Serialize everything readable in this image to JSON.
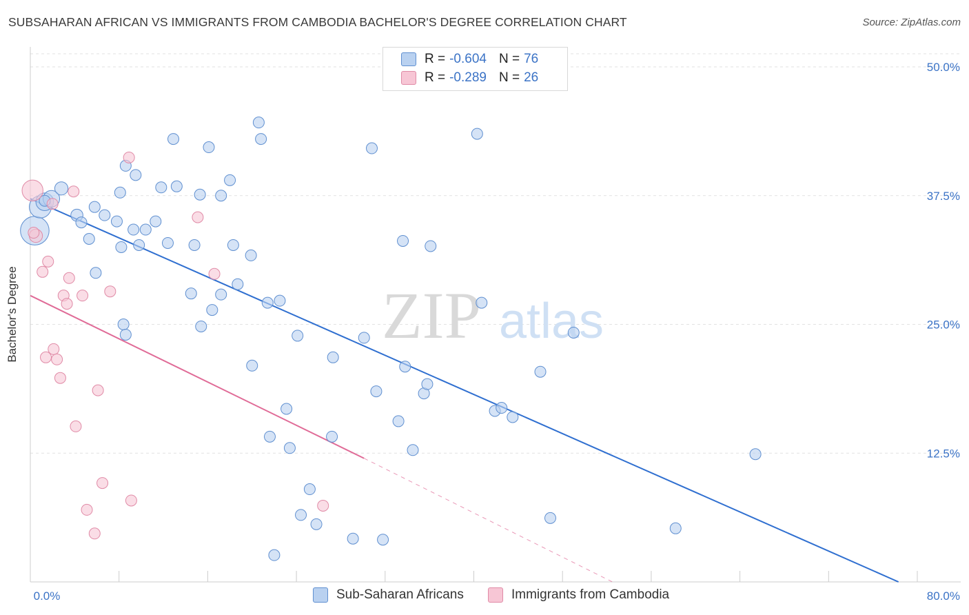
{
  "header": {
    "title": "SUBSAHARAN AFRICAN VS IMMIGRANTS FROM CAMBODIA BACHELOR'S DEGREE CORRELATION CHART",
    "source": "Source: ZipAtlas.com"
  },
  "watermark": {
    "zip": "ZIP",
    "atlas": "atlas"
  },
  "legend": {
    "rows": [
      {
        "r_label": "R =",
        "r_value": "-0.604",
        "n_label": "N =",
        "n_value": "76"
      },
      {
        "r_label": "R =",
        "r_value": "-0.289",
        "n_label": "N =",
        "n_value": "26"
      }
    ]
  },
  "chart_data": {
    "type": "scatter",
    "title": "SUBSAHARAN AFRICAN VS IMMIGRANTS FROM CAMBODIA BACHELOR'S DEGREE CORRELATION CHART",
    "xlabel": "",
    "ylabel": "Bachelor's Degree",
    "xlim": [
      0,
      80
    ],
    "ylim": [
      0,
      50
    ],
    "x_tick_labels": [
      "0.0%",
      "80.0%"
    ],
    "y_ticks": [
      12.5,
      25.0,
      37.5,
      50.0
    ],
    "y_tick_labels": [
      "12.5%",
      "25.0%",
      "37.5%",
      "50.0%"
    ],
    "grid": true,
    "legend_position": "top-center",
    "colors": {
      "blue_fill": "#b9d1f0",
      "blue_stroke": "#5f8fd0",
      "blue_line": "#2f6fd0",
      "pink_fill": "#f7c6d5",
      "pink_stroke": "#e08aa6",
      "pink_line": "#e06b97",
      "axis_text": "#3b73c6",
      "grid": "#e2e2e2"
    },
    "series": [
      {
        "name": "Sub-Saharan Africans",
        "color": "blue",
        "r": -0.604,
        "n": 76,
        "trend": {
          "x0": 0,
          "y0": 37.2,
          "x1": 78.3,
          "y1": 0
        },
        "points": [
          {
            "x": 0.4,
            "y": 34.1,
            "s": 2.6
          },
          {
            "x": 0.9,
            "y": 36.4,
            "s": 2.0
          },
          {
            "x": 1.3,
            "y": 36.9,
            "s": 1.6
          },
          {
            "x": 1.9,
            "y": 37.2,
            "s": 1.5
          },
          {
            "x": 2.8,
            "y": 38.2,
            "s": 1.2
          },
          {
            "x": 4.2,
            "y": 35.6,
            "s": 1.1
          },
          {
            "x": 4.6,
            "y": 34.9,
            "s": 1.0
          },
          {
            "x": 5.8,
            "y": 36.4,
            "s": 1.0
          },
          {
            "x": 5.3,
            "y": 33.3,
            "s": 1.0
          },
          {
            "x": 5.9,
            "y": 30.0,
            "s": 1.0
          },
          {
            "x": 6.7,
            "y": 35.6,
            "s": 1.0
          },
          {
            "x": 7.8,
            "y": 35.0,
            "s": 1.0
          },
          {
            "x": 8.1,
            "y": 37.8,
            "s": 1.0
          },
          {
            "x": 8.6,
            "y": 40.4,
            "s": 1.0
          },
          {
            "x": 8.2,
            "y": 32.5,
            "s": 1.0
          },
          {
            "x": 8.4,
            "y": 25.0,
            "s": 1.0
          },
          {
            "x": 8.6,
            "y": 24.0,
            "s": 1.0
          },
          {
            "x": 9.5,
            "y": 39.5,
            "s": 1.0
          },
          {
            "x": 9.3,
            "y": 34.2,
            "s": 1.0
          },
          {
            "x": 9.8,
            "y": 32.7,
            "s": 1.0
          },
          {
            "x": 10.4,
            "y": 34.2,
            "s": 1.0
          },
          {
            "x": 11.3,
            "y": 35.0,
            "s": 1.0
          },
          {
            "x": 11.8,
            "y": 38.3,
            "s": 1.0
          },
          {
            "x": 12.4,
            "y": 32.9,
            "s": 1.0
          },
          {
            "x": 12.9,
            "y": 43.0,
            "s": 1.0
          },
          {
            "x": 13.2,
            "y": 38.4,
            "s": 1.0
          },
          {
            "x": 14.8,
            "y": 32.7,
            "s": 1.0
          },
          {
            "x": 14.5,
            "y": 28.0,
            "s": 1.0
          },
          {
            "x": 15.3,
            "y": 37.6,
            "s": 1.0
          },
          {
            "x": 15.4,
            "y": 24.8,
            "s": 1.0
          },
          {
            "x": 16.1,
            "y": 42.2,
            "s": 1.0
          },
          {
            "x": 16.4,
            "y": 26.4,
            "s": 1.0
          },
          {
            "x": 17.2,
            "y": 37.5,
            "s": 1.0
          },
          {
            "x": 17.2,
            "y": 27.9,
            "s": 1.0
          },
          {
            "x": 18.0,
            "y": 39.0,
            "s": 1.0
          },
          {
            "x": 18.3,
            "y": 32.7,
            "s": 1.0
          },
          {
            "x": 18.7,
            "y": 28.9,
            "s": 1.0
          },
          {
            "x": 19.9,
            "y": 31.7,
            "s": 1.0
          },
          {
            "x": 20.0,
            "y": 21.0,
            "s": 1.0
          },
          {
            "x": 20.6,
            "y": 44.6,
            "s": 1.0
          },
          {
            "x": 20.8,
            "y": 43.0,
            "s": 1.0
          },
          {
            "x": 21.4,
            "y": 27.1,
            "s": 1.0
          },
          {
            "x": 22.5,
            "y": 27.3,
            "s": 1.0
          },
          {
            "x": 23.1,
            "y": 16.8,
            "s": 1.0
          },
          {
            "x": 21.6,
            "y": 14.1,
            "s": 1.0
          },
          {
            "x": 22.0,
            "y": 2.6,
            "s": 1.0
          },
          {
            "x": 23.4,
            "y": 13.0,
            "s": 1.0
          },
          {
            "x": 24.1,
            "y": 23.9,
            "s": 1.0
          },
          {
            "x": 24.4,
            "y": 6.5,
            "s": 1.0
          },
          {
            "x": 25.2,
            "y": 9.0,
            "s": 1.0
          },
          {
            "x": 25.8,
            "y": 5.6,
            "s": 1.0
          },
          {
            "x": 27.3,
            "y": 21.8,
            "s": 1.0
          },
          {
            "x": 27.2,
            "y": 14.1,
            "s": 1.0
          },
          {
            "x": 29.1,
            "y": 4.2,
            "s": 1.0
          },
          {
            "x": 30.1,
            "y": 23.7,
            "s": 1.0
          },
          {
            "x": 30.8,
            "y": 42.1,
            "s": 1.0
          },
          {
            "x": 31.2,
            "y": 18.5,
            "s": 1.0
          },
          {
            "x": 31.8,
            "y": 4.1,
            "s": 1.0
          },
          {
            "x": 33.2,
            "y": 15.6,
            "s": 1.0
          },
          {
            "x": 33.6,
            "y": 33.1,
            "s": 1.0
          },
          {
            "x": 33.8,
            "y": 20.9,
            "s": 1.0
          },
          {
            "x": 34.5,
            "y": 12.8,
            "s": 1.0
          },
          {
            "x": 35.5,
            "y": 18.3,
            "s": 1.0
          },
          {
            "x": 35.8,
            "y": 19.2,
            "s": 1.0
          },
          {
            "x": 36.1,
            "y": 32.6,
            "s": 1.0
          },
          {
            "x": 40.3,
            "y": 43.5,
            "s": 1.0
          },
          {
            "x": 40.7,
            "y": 27.1,
            "s": 1.0
          },
          {
            "x": 41.9,
            "y": 16.6,
            "s": 1.0
          },
          {
            "x": 42.5,
            "y": 16.9,
            "s": 1.0
          },
          {
            "x": 43.5,
            "y": 16.0,
            "s": 1.0
          },
          {
            "x": 46.0,
            "y": 20.4,
            "s": 1.0
          },
          {
            "x": 46.9,
            "y": 6.2,
            "s": 1.0
          },
          {
            "x": 49.0,
            "y": 24.2,
            "s": 1.0
          },
          {
            "x": 58.2,
            "y": 5.2,
            "s": 1.0
          },
          {
            "x": 65.4,
            "y": 12.4,
            "s": 1.0
          },
          {
            "x": 1.3,
            "y": 37.0,
            "s": 1.0
          }
        ]
      },
      {
        "name": "Immigrants from Cambodia",
        "color": "pink",
        "r": -0.289,
        "n": 26,
        "trend": {
          "x0": 0,
          "y0": 27.8,
          "x1": 30.1,
          "y1": 12.0,
          "dash_x1": 52.5,
          "dash_y1": 0
        },
        "points": [
          {
            "x": 0.2,
            "y": 38.0,
            "s": 1.9
          },
          {
            "x": 0.5,
            "y": 33.6,
            "s": 1.2
          },
          {
            "x": 1.1,
            "y": 30.1,
            "s": 1.0
          },
          {
            "x": 1.4,
            "y": 21.8,
            "s": 1.0
          },
          {
            "x": 1.6,
            "y": 31.1,
            "s": 1.0
          },
          {
            "x": 2.1,
            "y": 22.6,
            "s": 1.0
          },
          {
            "x": 2.4,
            "y": 21.6,
            "s": 1.0
          },
          {
            "x": 2.7,
            "y": 19.8,
            "s": 1.0
          },
          {
            "x": 3.0,
            "y": 27.8,
            "s": 1.0
          },
          {
            "x": 3.3,
            "y": 27.0,
            "s": 1.0
          },
          {
            "x": 3.5,
            "y": 29.5,
            "s": 1.0
          },
          {
            "x": 3.9,
            "y": 37.9,
            "s": 1.0
          },
          {
            "x": 4.1,
            "y": 15.1,
            "s": 1.0
          },
          {
            "x": 4.7,
            "y": 27.8,
            "s": 1.0
          },
          {
            "x": 5.1,
            "y": 7.0,
            "s": 1.0
          },
          {
            "x": 5.8,
            "y": 4.7,
            "s": 1.0
          },
          {
            "x": 6.1,
            "y": 18.6,
            "s": 1.0
          },
          {
            "x": 6.5,
            "y": 9.6,
            "s": 1.0
          },
          {
            "x": 7.2,
            "y": 28.2,
            "s": 1.0
          },
          {
            "x": 8.9,
            "y": 41.2,
            "s": 1.0
          },
          {
            "x": 9.1,
            "y": 7.9,
            "s": 1.0
          },
          {
            "x": 15.1,
            "y": 35.4,
            "s": 1.0
          },
          {
            "x": 16.6,
            "y": 29.9,
            "s": 1.0
          },
          {
            "x": 26.4,
            "y": 7.4,
            "s": 1.0
          },
          {
            "x": 0.3,
            "y": 33.9,
            "s": 1.0
          },
          {
            "x": 2.0,
            "y": 36.7,
            "s": 1.0
          }
        ]
      }
    ]
  },
  "bottom_legend": {
    "items": [
      {
        "label": "Sub-Saharan Africans"
      },
      {
        "label": "Immigrants from Cambodia"
      }
    ]
  }
}
